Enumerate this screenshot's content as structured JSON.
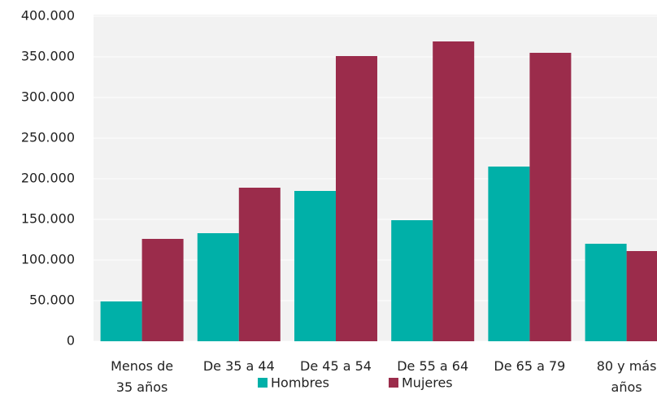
{
  "chart_data": {
    "type": "bar",
    "categories": [
      "Menos de 35 años",
      "De 35 a 44",
      "De 45 a 54",
      "De 55 a 64",
      "De 65 a 79",
      "80 y más años"
    ],
    "series": [
      {
        "name": "Hombres",
        "color": "#00b0a8",
        "values": [
          49000,
          133000,
          185000,
          149000,
          215000,
          120000
        ]
      },
      {
        "name": "Mujeres",
        "color": "#9b2c4b",
        "values": [
          126000,
          189000,
          351000,
          369000,
          355000,
          111000
        ]
      }
    ],
    "ylim": [
      0,
      400000
    ],
    "yticks": [
      0,
      {
        "value": 50000,
        "label": "50.000"
      },
      {
        "value": 100000,
        "label": "100.000"
      },
      {
        "value": 150000,
        "label": "150.000"
      },
      {
        "value": 200000,
        "label": "200.000"
      },
      {
        "value": 250000,
        "label": "250.000"
      },
      {
        "value": 300000,
        "label": "300.000"
      },
      {
        "value": 350000,
        "label": "350.000"
      },
      {
        "value": 400000,
        "label": "400.000"
      }
    ],
    "grid": true,
    "legend": "bottom"
  }
}
